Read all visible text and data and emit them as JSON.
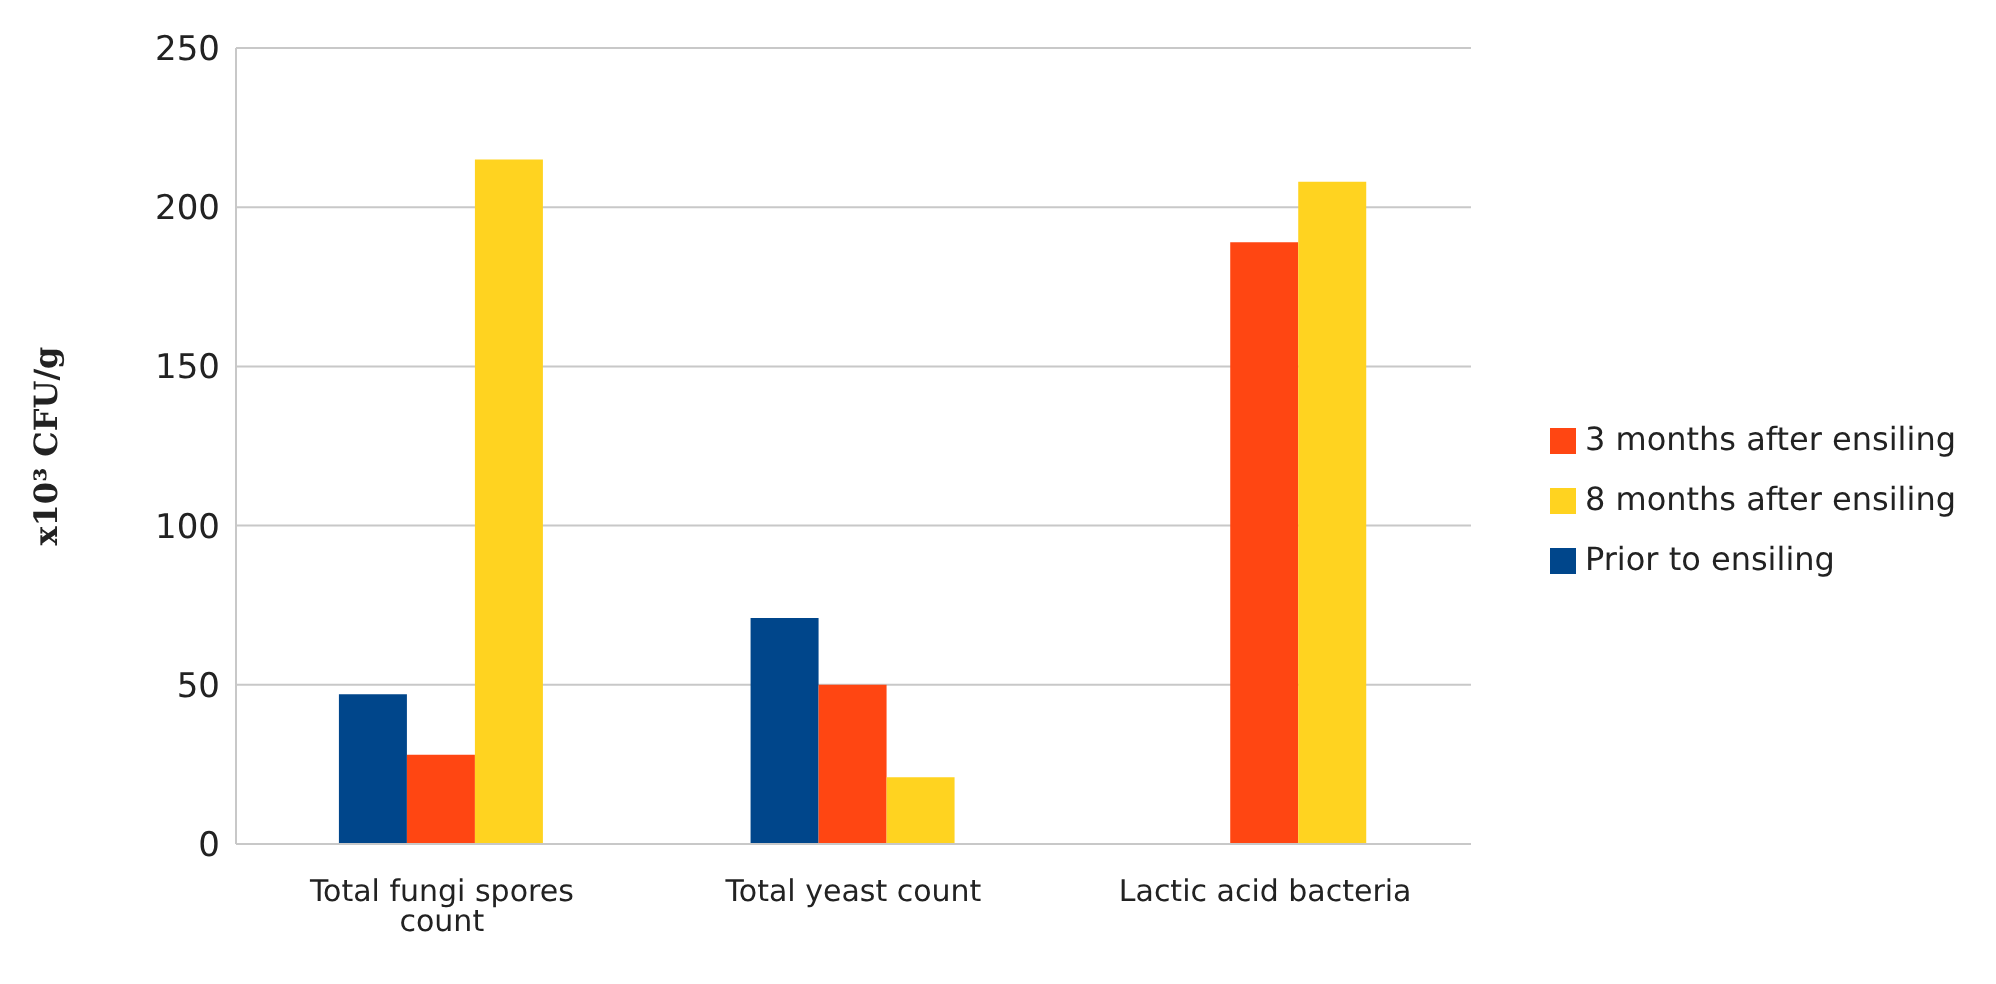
{
  "chart_data": {
    "type": "bar",
    "ylabel": "x10³ CFU/g",
    "categories": [
      "Total fungi spores count",
      "Total yeast count",
      "Lactic acid bacteria"
    ],
    "series": [
      {
        "name": "Prior to ensiling",
        "color": "#00468b",
        "values": [
          47,
          71,
          0
        ]
      },
      {
        "name": "3 months after ensiling",
        "color": "#ff4612",
        "values": [
          28,
          50,
          189
        ]
      },
      {
        "name": "8 months after ensiling",
        "color": "#ffd320",
        "values": [
          215,
          21,
          208
        ]
      }
    ],
    "ylim": [
      0,
      250
    ],
    "yticks": [
      0,
      50,
      100,
      150,
      200,
      250
    ],
    "grid": "y",
    "legend": "right"
  }
}
